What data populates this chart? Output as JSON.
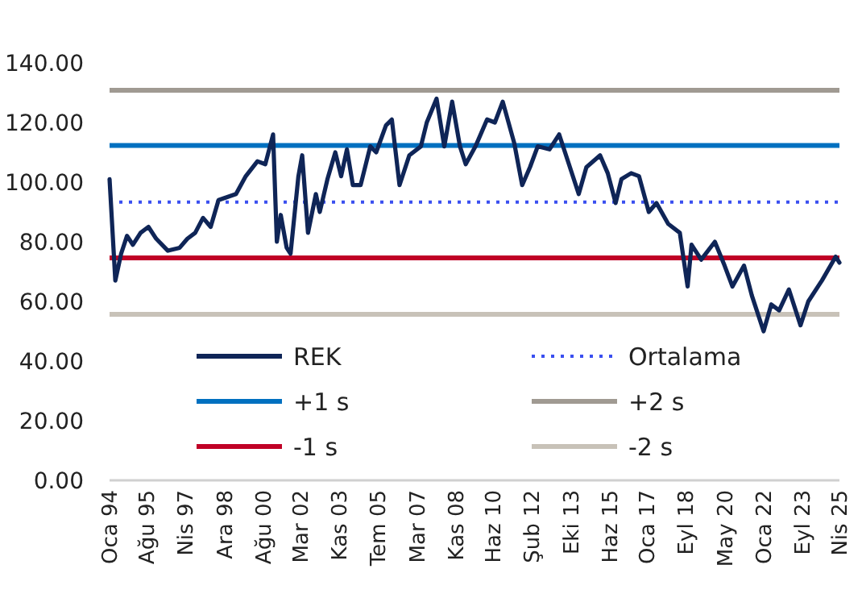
{
  "chart_data": {
    "type": "line",
    "x": [
      "1994-01",
      "1994-04",
      "1994-07",
      "1994-10",
      "1995-01",
      "1995-05",
      "1995-09",
      "1996-01",
      "1996-07",
      "1997-01",
      "1997-05",
      "1997-09",
      "1998-01",
      "1998-05",
      "1998-09",
      "1999-06",
      "1999-11",
      "2000-05",
      "2000-09",
      "2001-01",
      "2001-03",
      "2001-05",
      "2001-08",
      "2001-10",
      "2002-02",
      "2002-04",
      "2002-07",
      "2002-11",
      "2003-01",
      "2003-05",
      "2003-09",
      "2003-12",
      "2004-03",
      "2004-06",
      "2004-10",
      "2005-03",
      "2005-06",
      "2005-11",
      "2006-02",
      "2006-06",
      "2006-11",
      "2007-05",
      "2007-08",
      "2008-01",
      "2008-05",
      "2008-09",
      "2009-01",
      "2009-04",
      "2009-09",
      "2010-03",
      "2010-07",
      "2010-11",
      "2011-05",
      "2011-09",
      "2012-01",
      "2012-05",
      "2012-11",
      "2013-04",
      "2013-09",
      "2014-02",
      "2014-06",
      "2015-01",
      "2015-05",
      "2015-09",
      "2015-12",
      "2016-05",
      "2016-09",
      "2017-02",
      "2017-06",
      "2017-12",
      "2018-06",
      "2018-10",
      "2018-12",
      "2019-05",
      "2019-12",
      "2020-05",
      "2020-09",
      "2021-03",
      "2021-07",
      "2022-01",
      "2022-05",
      "2022-09",
      "2023-02",
      "2023-08",
      "2023-12",
      "2024-07",
      "2025-02",
      "2025-04"
    ],
    "series": [
      {
        "name": "REK",
        "color": "#0f2557",
        "values": [
          101,
          67,
          76,
          82,
          79,
          83,
          85,
          81,
          77,
          78,
          81,
          83,
          88,
          85,
          94,
          96,
          102,
          107,
          106,
          116,
          80,
          89,
          78,
          76,
          102,
          109,
          83,
          96,
          90,
          101,
          110,
          102,
          111,
          99,
          99,
          112,
          110,
          119,
          121,
          99,
          109,
          112,
          120,
          128,
          112,
          127,
          112,
          106,
          112,
          121,
          120,
          127,
          113,
          99,
          105,
          112,
          111,
          116,
          106,
          96,
          105,
          109,
          103,
          93,
          101,
          103,
          102,
          90,
          93,
          86,
          83,
          65,
          79,
          74,
          80,
          72,
          65,
          72,
          62,
          50,
          59,
          57,
          64,
          52,
          60,
          67,
          75,
          73
        ]
      }
    ],
    "ref_lines": [
      {
        "axis": "y",
        "value": 93.3,
        "label": "Ortalama",
        "color": "#3a4ff0",
        "line_style": "dotted"
      },
      {
        "axis": "y",
        "value": 112.3,
        "label": "+1 s",
        "color": "#0070c0",
        "line_style": "solid"
      },
      {
        "axis": "y",
        "value": 130.8,
        "label": "+2 s",
        "color": "#a09a92",
        "line_style": "solid"
      },
      {
        "axis": "y",
        "value": 74.6,
        "label": "-1 s",
        "color": "#c00026",
        "line_style": "solid"
      },
      {
        "axis": "y",
        "value": 55.7,
        "label": "-2 s",
        "color": "#c8c2b8",
        "line_style": "solid"
      }
    ],
    "xlim": [
      "1994-01",
      "2025-04"
    ],
    "xticks": [
      {
        "value": "1994-01",
        "label": "Oca 94"
      },
      {
        "value": "1995-08",
        "label": "Ağu 95"
      },
      {
        "value": "1997-04",
        "label": "Nis 97"
      },
      {
        "value": "1998-12",
        "label": "Ara 98"
      },
      {
        "value": "2000-08",
        "label": "Ağu 00"
      },
      {
        "value": "2002-03",
        "label": "Mar 02"
      },
      {
        "value": "2003-11",
        "label": "Kas 03"
      },
      {
        "value": "2005-07",
        "label": "Tem 05"
      },
      {
        "value": "2007-03",
        "label": "Mar 07"
      },
      {
        "value": "2008-11",
        "label": "Kas 08"
      },
      {
        "value": "2010-06",
        "label": "Haz 10"
      },
      {
        "value": "2012-02",
        "label": "Şub 12"
      },
      {
        "value": "2013-10",
        "label": "Eki 13"
      },
      {
        "value": "2015-06",
        "label": "Haz 15"
      },
      {
        "value": "2017-01",
        "label": "Oca 17"
      },
      {
        "value": "2018-09",
        "label": "Eyl 18"
      },
      {
        "value": "2020-05",
        "label": "May 20"
      },
      {
        "value": "2022-01",
        "label": "Oca 22"
      },
      {
        "value": "2023-09",
        "label": "Eyl 23"
      },
      {
        "value": "2025-04",
        "label": "Nis 25"
      }
    ],
    "ylim": [
      0,
      140
    ],
    "yticks": [
      {
        "value": 0,
        "label": "0.00"
      },
      {
        "value": 20,
        "label": "20.00"
      },
      {
        "value": 40,
        "label": "40.00"
      },
      {
        "value": 60,
        "label": "60.00"
      },
      {
        "value": 80,
        "label": "80.00"
      },
      {
        "value": 100,
        "label": "100.00"
      },
      {
        "value": 120,
        "label": "120.00"
      },
      {
        "value": 140,
        "label": "140.00"
      }
    ],
    "grid": false,
    "legend": "bottom",
    "line_style": "solid",
    "marker": "none"
  }
}
